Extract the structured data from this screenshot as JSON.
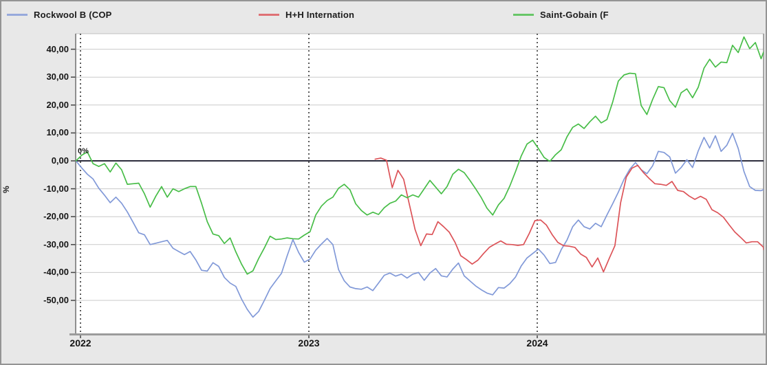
{
  "legend": {
    "items": [
      {
        "label": "Rockwool B (COP",
        "color": "#8199d8"
      },
      {
        "label": "H+H Internation",
        "color": "#dc5257"
      },
      {
        "label": "Saint-Gobain (F",
        "color": "#47bd47"
      }
    ]
  },
  "axes": {
    "y_title": "%",
    "y_tick_labels": [
      "40,00",
      "30,00",
      "20,00",
      "10,00",
      "0,00",
      "-10,00",
      "-20,00",
      "-30,00",
      "-40,00",
      "-50,00"
    ],
    "y_tick_values": [
      40,
      30,
      20,
      10,
      0,
      -10,
      -20,
      -30,
      -40,
      -50
    ],
    "x_tick_labels": [
      "2022",
      "2023",
      "2024"
    ],
    "x_tick_years": [
      2022,
      2023,
      2024
    ],
    "zero_annotation": "0%"
  },
  "colors": {
    "background": "#e8e8e8",
    "plot_background": "#ffffff",
    "gridline": "#c9c9c9",
    "zero_line": "#2c2c3c",
    "year_dotted_line": "#5a5a5a",
    "axis_frame": "#9b9b9b",
    "text": "#151515"
  },
  "chart_data": {
    "type": "line",
    "title": "",
    "xlabel": "",
    "ylabel": "%",
    "x_unit": "decimal_year",
    "x_range": [
      2021.98,
      2025.0
    ],
    "ylim": [
      -61.8,
      45.6
    ],
    "grid": true,
    "legend_position": "top",
    "series": [
      {
        "name": "Rockwool B (COP",
        "color": "#8199d8",
        "t0": 2021.98,
        "dt": 0.025,
        "values": [
          0,
          -2.5,
          -4.8,
          -6.5,
          -9.8,
          -12.3,
          -15,
          -13,
          -15.2,
          -18.3,
          -22,
          -25.8,
          -26.5,
          -30,
          -29.5,
          -29,
          -28.5,
          -31.3,
          -32.5,
          -33.6,
          -32.5,
          -35.5,
          -39.2,
          -39.5,
          -36.5,
          -37.8,
          -41.8,
          -43.8,
          -45,
          -49.5,
          -53.2,
          -56,
          -54,
          -50,
          -45.8,
          -43,
          -40.3,
          -34,
          -28.2,
          -32.8,
          -36.3,
          -35.2,
          -32,
          -29.8,
          -27.8,
          -30,
          -39,
          -43,
          -45.2,
          -45.8,
          -46,
          -45.2,
          -46.5,
          -43.8,
          -41,
          -40.2,
          -41.3,
          -40.6,
          -42,
          -40.6,
          -40,
          -42.8,
          -40.2,
          -38.6,
          -41.2,
          -41.6,
          -38.8,
          -36.6,
          -41.2,
          -43,
          -44.8,
          -46.2,
          -47.4,
          -48,
          -45.4,
          -45.6,
          -44,
          -41.6,
          -37.6,
          -34.8,
          -33.2,
          -31.6,
          -33.8,
          -36.8,
          -36.4,
          -31.8,
          -28.4,
          -23.6,
          -21.2,
          -23.6,
          -24.4,
          -22.4,
          -23.6,
          -19.4,
          -15.4,
          -11.2,
          -6.6,
          -3,
          -0.6,
          -3.2,
          -4.6,
          -1.8,
          3.4,
          3,
          1.4,
          -4.4,
          -2.4,
          0.4,
          -2.4,
          3.6,
          8.4,
          4.6,
          9,
          3.4,
          5.6,
          9.9,
          4.4,
          -3.8,
          -9.2,
          -10.6,
          -10.7,
          -10.3
        ]
      },
      {
        "name": "H+H Internation",
        "color": "#dc5257",
        "t0": 2023.29,
        "dt": 0.025,
        "values": [
          0.6,
          1,
          0.2,
          -9.6,
          -3.4,
          -6.6,
          -15.6,
          -24.6,
          -30.4,
          -26.2,
          -26.4,
          -21.8,
          -23.6,
          -25.6,
          -29.2,
          -34,
          -35.4,
          -37,
          -35.6,
          -33.2,
          -31,
          -29.8,
          -28.7,
          -29.9,
          -30,
          -30.3,
          -30,
          -26,
          -21.4,
          -21.2,
          -23,
          -26.4,
          -29.2,
          -30.4,
          -30.6,
          -31,
          -33.4,
          -34.6,
          -38,
          -34.8,
          -39.8,
          -35,
          -30.4,
          -15,
          -5.8,
          -2.6,
          -1.6,
          -4.2,
          -6.3,
          -8.2,
          -8.4,
          -8.8,
          -7.4,
          -10.6,
          -11,
          -12.6,
          -13.8,
          -12.7,
          -13.8,
          -17.5,
          -18.6,
          -20.2,
          -22.9,
          -25.5,
          -27.4,
          -29.4,
          -29,
          -29,
          -30.9,
          -31.8
        ]
      },
      {
        "name": "Saint-Gobain (F",
        "color": "#47bd47",
        "t0": 2021.98,
        "dt": 0.025,
        "values": [
          0,
          2,
          3.2,
          -1,
          -2,
          -1,
          -4,
          -0.8,
          -3.2,
          -8.4,
          -8.2,
          -8,
          -11.8,
          -16.6,
          -12.6,
          -9.2,
          -13,
          -10,
          -11,
          -10,
          -9.2,
          -9.2,
          -15.2,
          -21.8,
          -26.2,
          -26.8,
          -29.6,
          -27.6,
          -32.6,
          -37,
          -40.6,
          -39.4,
          -35,
          -31.2,
          -27,
          -28.2,
          -28,
          -27.6,
          -27.9,
          -28,
          -26.6,
          -25.4,
          -19.4,
          -16.2,
          -14.2,
          -13,
          -9.8,
          -8.4,
          -10.4,
          -15.4,
          -17.8,
          -19.4,
          -18.4,
          -19.2,
          -16.8,
          -15.2,
          -14.4,
          -12.2,
          -13.2,
          -12.2,
          -13,
          -10,
          -7,
          -9.4,
          -11.8,
          -9.2,
          -4.8,
          -3,
          -4.2,
          -7,
          -10,
          -13.2,
          -17,
          -19.4,
          -15.8,
          -13.4,
          -9,
          -3.8,
          1.8,
          6,
          7.4,
          4.4,
          1.2,
          -0.2,
          2.2,
          4,
          8.6,
          12,
          13.2,
          11.6,
          14,
          16,
          13.6,
          14.8,
          21,
          28.6,
          30.8,
          31.4,
          31.2,
          19.8,
          16.6,
          22,
          26.6,
          26.2,
          21.6,
          19.2,
          24.4,
          25.8,
          22.6,
          26.4,
          33.2,
          36.4,
          33.6,
          35.4,
          35.2,
          41.4,
          38.8,
          44.4,
          40.2,
          42.4,
          36.6,
          39
        ]
      }
    ]
  }
}
